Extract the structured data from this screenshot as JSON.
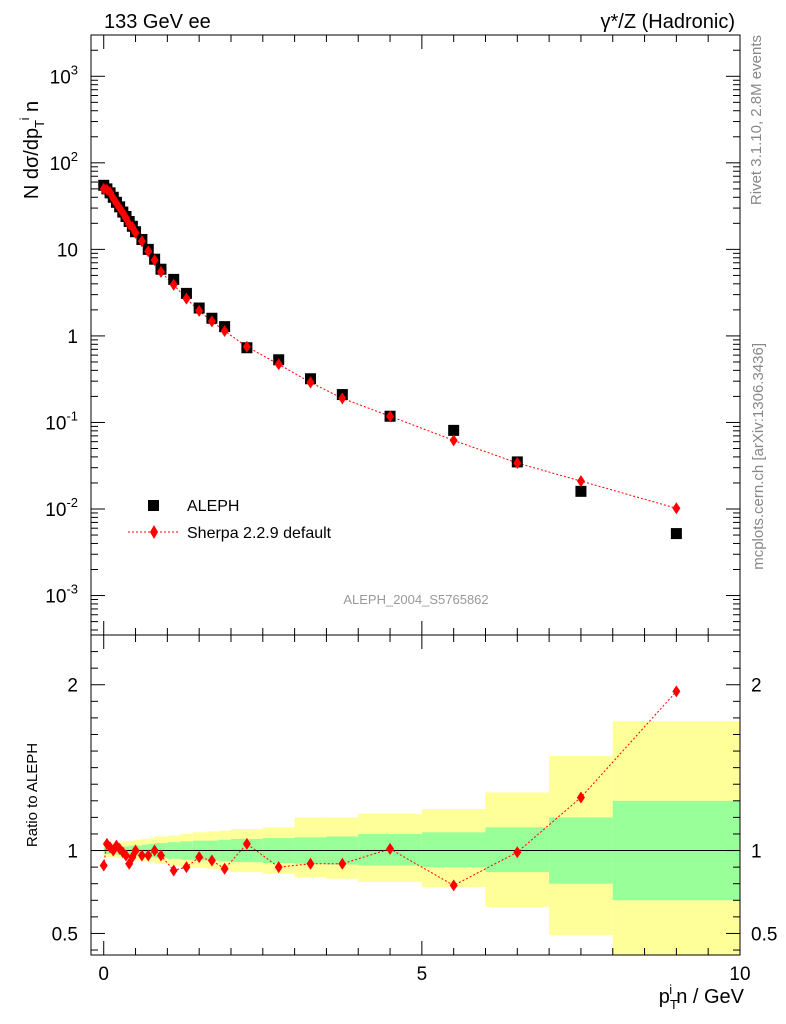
{
  "header": {
    "left": "133 GeV ee",
    "right": "γ*/Z (Hadronic)"
  },
  "side_text": {
    "rivet": "Rivet 3.1.10,  2.8M events",
    "source": "mcplots.cern.ch [arXiv:1306.3436]"
  },
  "watermark": "ALEPH_2004_S5765862",
  "legend": {
    "data_label": "ALEPH",
    "mc_label": "Sherpa 2.2.9 default"
  },
  "colors": {
    "data": "#000000",
    "mc": "#ff0000",
    "band_inner": "#99ff99",
    "band_outer": "#ffff99",
    "watermark": "#999999",
    "side_text": "#888888"
  },
  "chart_data": [
    {
      "type": "scatter",
      "panel": "main",
      "ylabel": "N dσ/dp_T^i n",
      "yscale": "log",
      "xlim": [
        -0.2,
        10.0
      ],
      "ylim": [
        0.00035,
        3000
      ],
      "y_ticks": [
        {
          "value": 1000,
          "label": "10^3"
        },
        {
          "value": 100,
          "label": "10^2"
        },
        {
          "value": 10,
          "label": "10"
        },
        {
          "value": 1,
          "label": "1"
        },
        {
          "value": 0.1,
          "label": "10^-1"
        },
        {
          "value": 0.01,
          "label": "10^-2"
        },
        {
          "value": 0.001,
          "label": "10^-3"
        }
      ],
      "series": [
        {
          "name": "ALEPH",
          "marker": "square",
          "x": [
            0.0,
            0.05,
            0.1,
            0.15,
            0.2,
            0.25,
            0.3,
            0.35,
            0.4,
            0.45,
            0.5,
            0.6,
            0.7,
            0.8,
            0.9,
            1.1,
            1.3,
            1.5,
            1.7,
            1.9,
            2.25,
            2.75,
            3.25,
            3.75,
            4.5,
            5.5,
            6.5,
            7.5,
            9.0
          ],
          "y": [
            55,
            50,
            45,
            40,
            35,
            31,
            27,
            24,
            21,
            18.5,
            16,
            13,
            10,
            7.7,
            5.9,
            4.5,
            3.1,
            2.1,
            1.6,
            1.28,
            0.73,
            0.53,
            0.32,
            0.21,
            0.118,
            0.081,
            0.035,
            0.016,
            0.0052
          ]
        },
        {
          "name": "Sherpa 2.2.9 default",
          "marker": "diamond",
          "line": "dotted",
          "x": [
            0.0,
            0.05,
            0.1,
            0.15,
            0.2,
            0.25,
            0.3,
            0.35,
            0.4,
            0.45,
            0.5,
            0.6,
            0.7,
            0.8,
            0.9,
            1.1,
            1.3,
            1.5,
            1.7,
            1.9,
            2.25,
            2.75,
            3.25,
            3.75,
            4.5,
            5.5,
            6.5,
            7.5,
            9.0
          ],
          "y": [
            50,
            49,
            45.5,
            39,
            34,
            30,
            26.5,
            23,
            19.5,
            18,
            15.5,
            12.4,
            9.5,
            7.5,
            5.5,
            3.9,
            2.7,
            1.95,
            1.47,
            1.14,
            0.75,
            0.47,
            0.29,
            0.19,
            0.118,
            0.062,
            0.034,
            0.021,
            0.0102
          ]
        }
      ]
    },
    {
      "type": "scatter",
      "panel": "ratio",
      "xlabel": "p_T^i n / GeV",
      "ylabel": "Ratio to ALEPH",
      "xlim": [
        -0.2,
        10.0
      ],
      "ylim": [
        0.37,
        2.3
      ],
      "x_ticks": [
        0,
        5,
        10
      ],
      "y_ticks": [
        0.5,
        1,
        2
      ],
      "reference_line": 1,
      "bands": {
        "bins": [
          [
            0.0,
            0.1
          ],
          [
            0.1,
            0.2
          ],
          [
            0.2,
            0.3
          ],
          [
            0.3,
            0.4
          ],
          [
            0.4,
            0.5
          ],
          [
            0.5,
            0.6
          ],
          [
            0.6,
            0.7
          ],
          [
            0.7,
            0.8
          ],
          [
            0.8,
            1.0
          ],
          [
            1.0,
            1.2
          ],
          [
            1.2,
            1.4
          ],
          [
            1.4,
            1.6
          ],
          [
            1.6,
            1.8
          ],
          [
            1.8,
            2.0
          ],
          [
            2.0,
            2.5
          ],
          [
            2.5,
            3.0
          ],
          [
            3.0,
            3.5
          ],
          [
            3.5,
            4.0
          ],
          [
            4.0,
            5.0
          ],
          [
            5.0,
            6.0
          ],
          [
            6.0,
            7.0
          ],
          [
            7.0,
            8.0
          ],
          [
            8.0,
            10.0
          ]
        ],
        "inner": [
          [
            0.98,
            1.02
          ],
          [
            0.98,
            1.02
          ],
          [
            0.975,
            1.025
          ],
          [
            0.975,
            1.025
          ],
          [
            0.97,
            1.03
          ],
          [
            0.97,
            1.03
          ],
          [
            0.965,
            1.035
          ],
          [
            0.96,
            1.04
          ],
          [
            0.955,
            1.045
          ],
          [
            0.95,
            1.05
          ],
          [
            0.945,
            1.055
          ],
          [
            0.94,
            1.06
          ],
          [
            0.94,
            1.06
          ],
          [
            0.935,
            1.065
          ],
          [
            0.93,
            1.07
          ],
          [
            0.925,
            1.075
          ],
          [
            0.92,
            1.08
          ],
          [
            0.915,
            1.085
          ],
          [
            0.91,
            1.1
          ],
          [
            0.9,
            1.11
          ],
          [
            0.87,
            1.14
          ],
          [
            0.8,
            1.2
          ],
          [
            0.7,
            1.3
          ]
        ],
        "outer": [
          [
            0.96,
            1.04
          ],
          [
            0.96,
            1.045
          ],
          [
            0.955,
            1.05
          ],
          [
            0.95,
            1.055
          ],
          [
            0.95,
            1.06
          ],
          [
            0.94,
            1.065
          ],
          [
            0.935,
            1.07
          ],
          [
            0.93,
            1.075
          ],
          [
            0.92,
            1.085
          ],
          [
            0.91,
            1.09
          ],
          [
            0.9,
            1.1
          ],
          [
            0.895,
            1.11
          ],
          [
            0.89,
            1.115
          ],
          [
            0.88,
            1.12
          ],
          [
            0.87,
            1.13
          ],
          [
            0.86,
            1.14
          ],
          [
            0.84,
            1.2
          ],
          [
            0.83,
            1.2
          ],
          [
            0.81,
            1.22
          ],
          [
            0.78,
            1.25
          ],
          [
            0.66,
            1.35
          ],
          [
            0.49,
            1.57
          ],
          [
            0.35,
            1.78
          ]
        ]
      },
      "series": [
        {
          "name": "Sherpa 2.2.9 default",
          "marker": "diamond",
          "line": "dotted",
          "x": [
            0.0,
            0.05,
            0.1,
            0.15,
            0.2,
            0.25,
            0.3,
            0.35,
            0.4,
            0.45,
            0.5,
            0.6,
            0.7,
            0.8,
            0.9,
            1.1,
            1.3,
            1.5,
            1.7,
            1.9,
            2.25,
            2.75,
            3.25,
            3.75,
            4.5,
            5.5,
            6.5,
            7.5,
            9.0
          ],
          "y": [
            0.91,
            1.04,
            1.02,
            1.0,
            1.03,
            1.01,
            0.99,
            0.97,
            0.92,
            0.96,
            1.0,
            0.97,
            0.97,
            1.0,
            0.97,
            0.88,
            0.9,
            0.96,
            0.94,
            0.89,
            1.04,
            0.9,
            0.92,
            0.92,
            1.01,
            0.79,
            0.99,
            1.32,
            1.96
          ]
        }
      ]
    }
  ]
}
